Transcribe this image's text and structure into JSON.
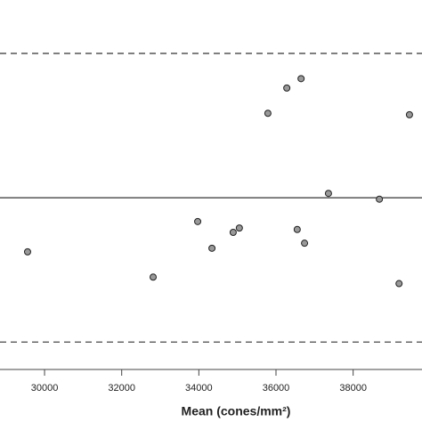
{
  "chart_data": {
    "type": "scatter",
    "x_label": "Mean (cones/mm²)",
    "xlim": [
      28845,
      39785
    ],
    "ylim": [
      -2.38,
      2.74
    ],
    "xticks": [
      30000,
      32000,
      34000,
      36000,
      38000
    ],
    "hlines": [
      {
        "value": 2.0,
        "style": "dashed"
      },
      {
        "value": 0,
        "style": "solid"
      },
      {
        "value": -2.0,
        "style": "dashed"
      }
    ],
    "marker_color": "#999999",
    "x": [
      29560,
      32815,
      33970,
      34340,
      34890,
      35050,
      35790,
      36280,
      36650,
      36550,
      36740,
      37360,
      38680,
      39190,
      39460
    ],
    "values": [
      -0.75,
      -1.1,
      -0.33,
      -0.7,
      -0.48,
      -0.42,
      1.17,
      1.52,
      1.65,
      -0.44,
      -0.63,
      0.06,
      -0.02,
      -1.19,
      1.15
    ]
  }
}
